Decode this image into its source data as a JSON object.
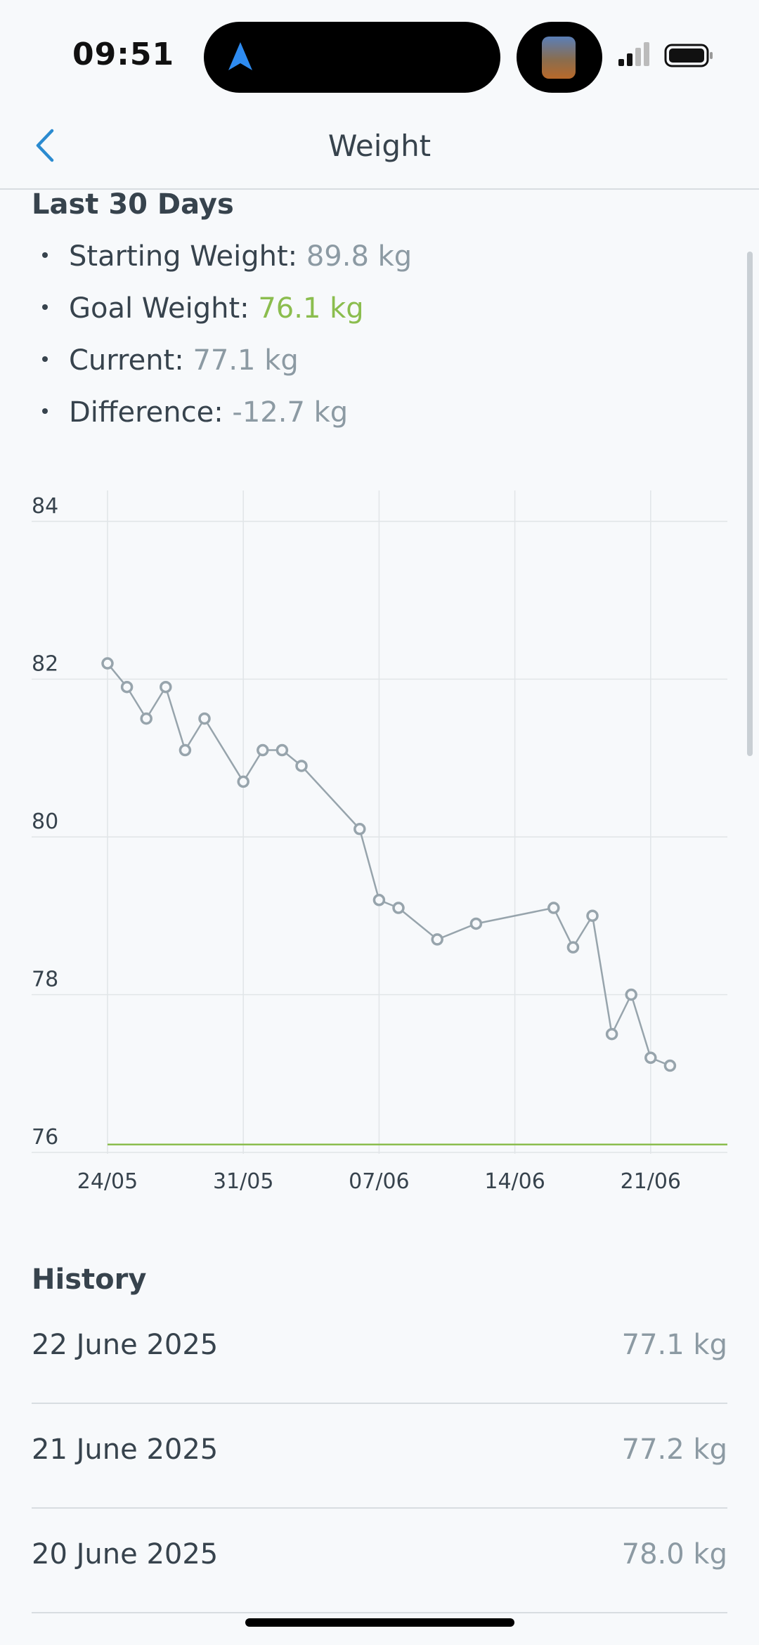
{
  "status_bar": {
    "time": "09:51",
    "nav_icon": "location-arrow-icon",
    "signal_icon": "signal-icon",
    "battery_icon": "battery-icon"
  },
  "header": {
    "title": "Weight",
    "back_icon": "chevron-left-icon"
  },
  "summary": {
    "heading": "Last 30 Days",
    "stats": [
      {
        "label": "Starting Weight:",
        "value": "89.8 kg",
        "color": "#8c9aa3"
      },
      {
        "label": "Goal Weight:",
        "value": "76.1 kg",
        "color": "#8bbd4e"
      },
      {
        "label": "Current:",
        "value": "77.1 kg",
        "color": "#8c9aa3"
      },
      {
        "label": "Difference:",
        "value": "-12.7 kg",
        "color": "#8c9aa3"
      }
    ]
  },
  "chart_data": {
    "type": "line",
    "y_ticks": [
      "84",
      "82",
      "80",
      "78",
      "76"
    ],
    "ylim": [
      76,
      84
    ],
    "x_ticks": [
      "24/05",
      "31/05",
      "07/06",
      "14/06",
      "21/06"
    ],
    "x_tick_days": [
      0,
      7,
      14,
      21,
      28
    ],
    "goal_line": 76.1,
    "goal_color": "#8bbd4e",
    "line_color": "#97a4ac",
    "grid": true,
    "series": [
      {
        "x": [
          0,
          1,
          2,
          3,
          4,
          5,
          7,
          8,
          9,
          10,
          13,
          14,
          15,
          17,
          19,
          23,
          24,
          25,
          26,
          27,
          28,
          29
        ],
        "y": [
          82.2,
          81.9,
          81.5,
          81.9,
          81.1,
          81.5,
          80.7,
          81.1,
          81.1,
          80.9,
          80.1,
          79.2,
          79.1,
          78.7,
          78.9,
          79.1,
          78.6,
          79.0,
          77.5,
          78.0,
          77.2,
          77.1
        ]
      }
    ]
  },
  "history": {
    "heading": "History",
    "rows": [
      {
        "date": "22 June 2025",
        "value": "77.1 kg"
      },
      {
        "date": "21 June 2025",
        "value": "77.2 kg"
      },
      {
        "date": "20 June 2025",
        "value": "78.0 kg"
      }
    ]
  }
}
